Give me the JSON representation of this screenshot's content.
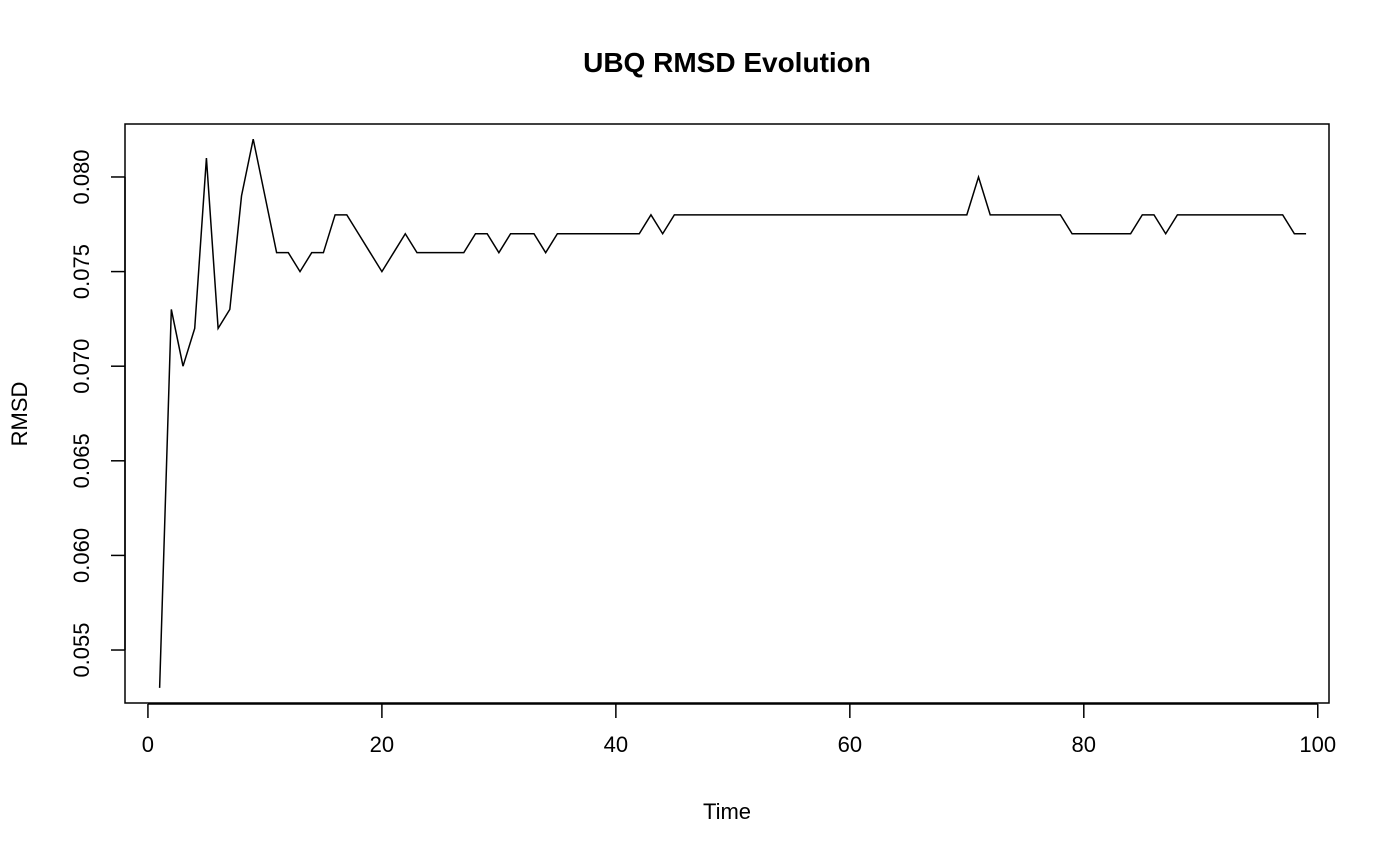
{
  "chart_data": {
    "type": "line",
    "title": "UBQ RMSD Evolution",
    "xlabel": "Time",
    "ylabel": "RMSD",
    "xlim": [
      -1.96,
      100.96
    ],
    "ylim": [
      0.0522,
      0.0828
    ],
    "x_ticks": [
      0,
      20,
      40,
      60,
      80,
      100
    ],
    "x_tick_labels": [
      "0",
      "20",
      "40",
      "60",
      "80",
      "100"
    ],
    "y_ticks": [
      0.055,
      0.06,
      0.065,
      0.07,
      0.075,
      0.08
    ],
    "y_tick_labels": [
      "0.055",
      "0.060",
      "0.065",
      "0.070",
      "0.075",
      "0.080"
    ],
    "grid": false,
    "series": [
      {
        "color": "#000000",
        "x": [
          1,
          2,
          3,
          4,
          5,
          6,
          7,
          8,
          9,
          10,
          11,
          12,
          13,
          14,
          15,
          16,
          17,
          18,
          19,
          20,
          21,
          22,
          23,
          24,
          25,
          26,
          27,
          28,
          29,
          30,
          31,
          32,
          33,
          34,
          35,
          36,
          37,
          38,
          39,
          40,
          41,
          42,
          43,
          44,
          45,
          46,
          47,
          48,
          49,
          50,
          51,
          52,
          53,
          54,
          55,
          56,
          57,
          58,
          59,
          60,
          61,
          62,
          63,
          64,
          65,
          66,
          67,
          68,
          69,
          70,
          71,
          72,
          73,
          74,
          75,
          76,
          77,
          78,
          79,
          80,
          81,
          82,
          83,
          84,
          85,
          86,
          87,
          88,
          89,
          90,
          91,
          92,
          93,
          94,
          95,
          96,
          97,
          98,
          99
        ],
        "y": [
          0.053,
          0.073,
          0.07,
          0.072,
          0.081,
          0.072,
          0.073,
          0.079,
          0.082,
          0.079,
          0.076,
          0.076,
          0.075,
          0.076,
          0.076,
          0.078,
          0.078,
          0.077,
          0.076,
          0.075,
          0.076,
          0.077,
          0.076,
          0.076,
          0.076,
          0.076,
          0.076,
          0.077,
          0.077,
          0.076,
          0.077,
          0.077,
          0.077,
          0.076,
          0.077,
          0.077,
          0.077,
          0.077,
          0.077,
          0.077,
          0.077,
          0.077,
          0.078,
          0.077,
          0.078,
          0.078,
          0.078,
          0.078,
          0.078,
          0.078,
          0.078,
          0.078,
          0.078,
          0.078,
          0.078,
          0.078,
          0.078,
          0.078,
          0.078,
          0.078,
          0.078,
          0.078,
          0.078,
          0.078,
          0.078,
          0.078,
          0.078,
          0.078,
          0.078,
          0.078,
          0.08,
          0.078,
          0.078,
          0.078,
          0.078,
          0.078,
          0.078,
          0.078,
          0.077,
          0.077,
          0.077,
          0.077,
          0.077,
          0.077,
          0.078,
          0.078,
          0.077,
          0.078,
          0.078,
          0.078,
          0.078,
          0.078,
          0.078,
          0.078,
          0.078,
          0.078,
          0.078,
          0.077,
          0.077
        ]
      }
    ]
  }
}
